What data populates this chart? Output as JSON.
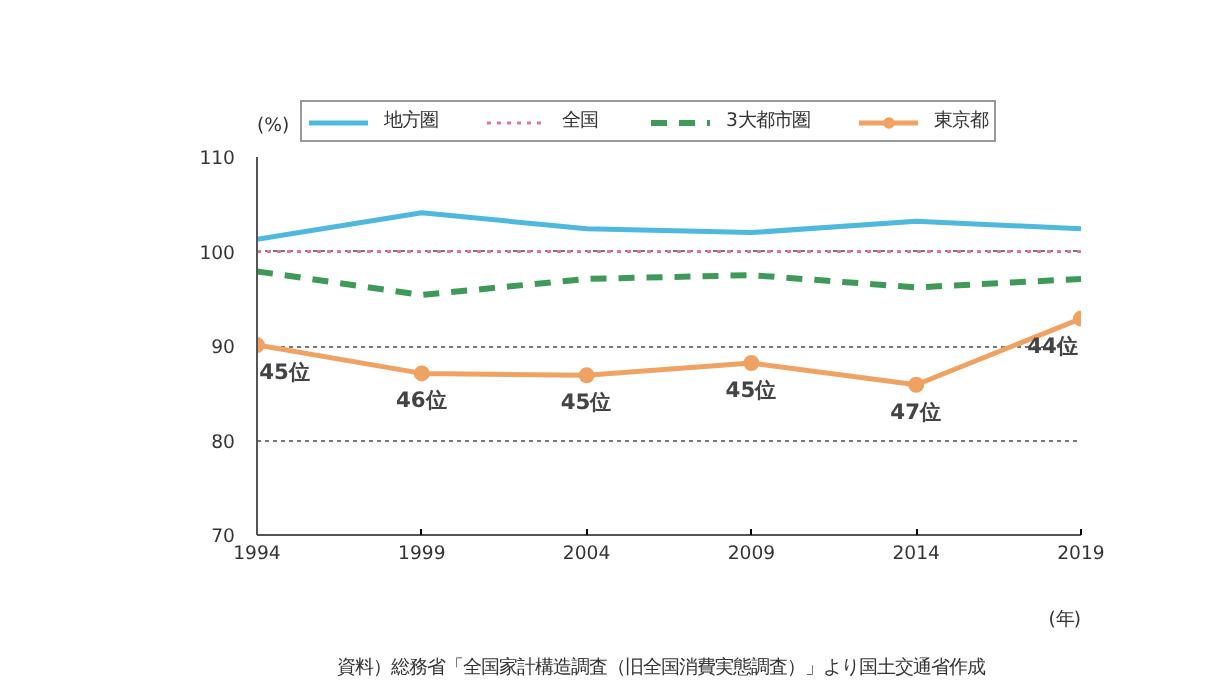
{
  "chart_data": {
    "type": "line",
    "x": [
      1994,
      1999,
      2004,
      2009,
      2014,
      2019
    ],
    "xlim": [
      1994,
      2019
    ],
    "xticks": [
      1994,
      1999,
      2004,
      2009,
      2014,
      2019
    ],
    "ylim": [
      70,
      110
    ],
    "yticks": [
      70,
      80,
      90,
      100,
      110
    ],
    "xlabel": "(年)",
    "ylabel": "(%)",
    "grid": "y",
    "legend": "top",
    "series": [
      {
        "name": "地方圏",
        "color": "#4fb8df",
        "line_style": "solid",
        "marker": "none",
        "values": [
          101.3,
          104.1,
          102.4,
          102.0,
          103.2,
          102.4
        ]
      },
      {
        "name": "全国",
        "color": "#e8749a",
        "line_style": "dotted",
        "marker": "none",
        "values": [
          100,
          100,
          100,
          100,
          100,
          100
        ]
      },
      {
        "name": "3大都市圏",
        "color": "#3f9a5a",
        "line_style": "dashed",
        "marker": "none",
        "values": [
          97.9,
          95.4,
          97.1,
          97.5,
          96.2,
          97.1
        ]
      },
      {
        "name": "東京都",
        "color": "#f0a263",
        "line_style": "solid",
        "marker": "circle",
        "values": [
          90.1,
          87.1,
          86.9,
          88.2,
          85.9,
          92.9
        ]
      }
    ],
    "annotations": [
      {
        "text": "45位",
        "x": 1994,
        "y": 90.1
      },
      {
        "text": "46位",
        "x": 1999,
        "y": 87.1
      },
      {
        "text": "45位",
        "x": 2004,
        "y": 86.9
      },
      {
        "text": "45位",
        "x": 2009,
        "y": 88.2
      },
      {
        "text": "47位",
        "x": 2014,
        "y": 85.9
      },
      {
        "text": "44位",
        "x": 2019,
        "y": 92.9
      },
      "資料）総務省「全国家計構造調査（旧全国消費実態調査）」より国土交通省作成"
    ]
  }
}
